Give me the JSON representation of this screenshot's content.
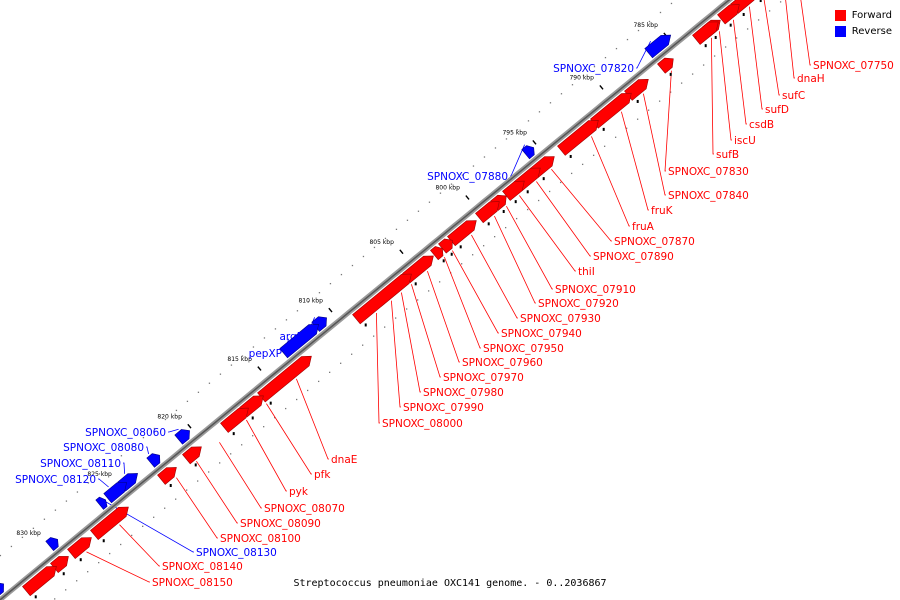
{
  "legend": {
    "forward_label": "Forward",
    "reverse_label": "Reverse",
    "forward_color": "#ff0000",
    "reverse_color": "#0000ff"
  },
  "caption": "Streptococcus pneumoniae OXC141 genome. - 0..2036867",
  "ticks": [
    "785 kbp",
    "790 kbp",
    "795 kbp",
    "800 kbp",
    "805 kbp",
    "810 kbp",
    "815 kbp",
    "820 kbp",
    "825 kbp",
    "830 kbp"
  ],
  "labels_forward": [
    "SPNOXC_07750",
    "dnaH",
    "sufC",
    "sufD",
    "csdB",
    "iscU",
    "sufB",
    "SPNOXC_07830",
    "SPNOXC_07840",
    "fruK",
    "fruA",
    "SPNOXC_07870",
    "SPNOXC_07890",
    "thiI",
    "SPNOXC_07910",
    "SPNOXC_07920",
    "SPNOXC_07930",
    "SPNOXC_07940",
    "SPNOXC_07950",
    "SPNOXC_07960",
    "SPNOXC_07970",
    "SPNOXC_07980",
    "SPNOXC_07990",
    "SPNOXC_08000",
    "dnaE",
    "pfk",
    "pyk",
    "SPNOXC_08070",
    "SPNOXC_08090",
    "SPNOXC_08100",
    "SPNOXC_08140",
    "SPNOXC_08150"
  ],
  "labels_reverse": [
    "SPNOXC_07820",
    "SPNOXC_07880",
    "argR",
    "pepXP",
    "SPNOXC_08060",
    "SPNOXC_08080",
    "SPNOXC_08110",
    "SPNOXC_08120",
    "SPNOXC_08130"
  ]
}
